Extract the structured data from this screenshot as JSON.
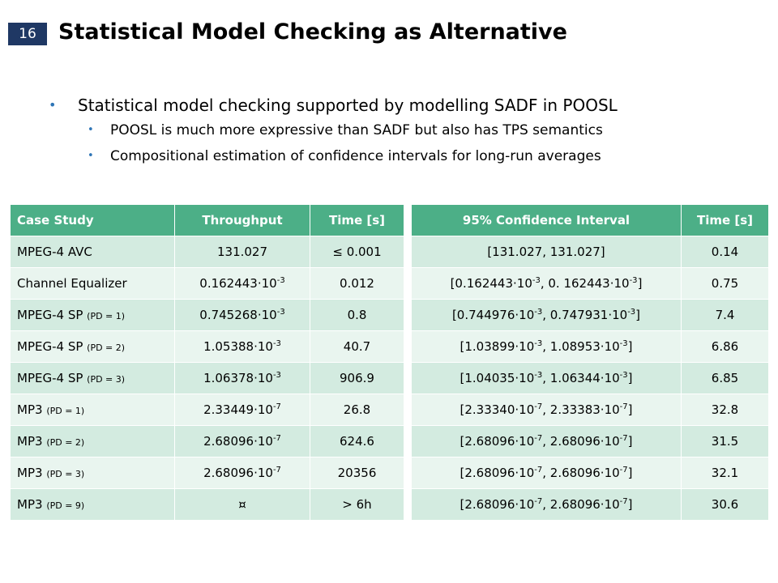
{
  "slide": {
    "number": "16",
    "title": "Statistical Model Checking as Alternative"
  },
  "bullets": {
    "level1": "Statistical model checking supported by modelling SADF in POOSL",
    "level2": [
      "POOSL is much more expressive than SADF but also has TPS semantics",
      "Compositional estimation of confidence intervals for long-run averages"
    ],
    "marker": "•"
  },
  "left_table": {
    "headers": [
      "Case Study",
      "Throughput",
      "Time [s]"
    ],
    "rows": [
      {
        "case": "MPEG-4 AVC",
        "pd": "",
        "mant": "131.027",
        "exp": "",
        "time": "≤ 0.001"
      },
      {
        "case": "Channel Equalizer",
        "pd": "",
        "mant": "0.162443·10",
        "exp": "-3",
        "time": "0.012"
      },
      {
        "case": "MPEG-4 SP ",
        "pd": "(PD = 1)",
        "mant": "0.745268·10",
        "exp": "-3",
        "time": "0.8"
      },
      {
        "case": "MPEG-4 SP ",
        "pd": "(PD = 2)",
        "mant": "1.05388·10",
        "exp": "-3",
        "time": "40.7"
      },
      {
        "case": "MPEG-4 SP ",
        "pd": "(PD = 3)",
        "mant": "1.06378·10",
        "exp": "-3",
        "time": "906.9"
      },
      {
        "case": "MP3 ",
        "pd": "(PD = 1)",
        "mant": "2.33449·10",
        "exp": "-7",
        "time": "26.8"
      },
      {
        "case": "MP3 ",
        "pd": "(PD = 2)",
        "mant": "2.68096·10",
        "exp": "-7",
        "time": "624.6"
      },
      {
        "case": "MP3 ",
        "pd": "(PD = 3)",
        "mant": "2.68096·10",
        "exp": "-7",
        "time": "20356"
      },
      {
        "case": "MP3 ",
        "pd": "(PD = 9)",
        "mant": "¤",
        "exp": "",
        "time": "> 6h"
      }
    ]
  },
  "right_table": {
    "headers": [
      "95% Confidence Interval",
      "Time [s]"
    ],
    "rows": [
      {
        "lo": "[131.027",
        "lo_exp": "",
        "hi": ", 131.027",
        "hi_exp": "",
        "close": "]",
        "time": "0.14"
      },
      {
        "lo": "[0.162443·10",
        "lo_exp": "-3",
        "hi": ", 0. 162443·10",
        "hi_exp": "-3",
        "close": "]",
        "time": "0.75"
      },
      {
        "lo": "[0.744976·10",
        "lo_exp": "-3",
        "hi": ", 0.747931·10",
        "hi_exp": "-3",
        "close": "]",
        "time": "7.4"
      },
      {
        "lo": "[1.03899·10",
        "lo_exp": "-3",
        "hi": ", 1.08953·10",
        "hi_exp": "-3",
        "close": "]",
        "time": "6.86"
      },
      {
        "lo": "[1.04035·10",
        "lo_exp": "-3",
        "hi": ", 1.06344·10",
        "hi_exp": "-3",
        "close": "]",
        "time": "6.85"
      },
      {
        "lo": "[2.33340·10",
        "lo_exp": "-7",
        "hi": ", 2.33383·10",
        "hi_exp": "-7",
        "close": "]",
        "time": "32.8"
      },
      {
        "lo": "[2.68096·10",
        "lo_exp": "-7",
        "hi": ", 2.68096·10",
        "hi_exp": "-7",
        "close": "]",
        "time": "31.5"
      },
      {
        "lo": "[2.68096·10",
        "lo_exp": "-7",
        "hi": ", 2.68096·10",
        "hi_exp": "-7",
        "close": "]",
        "time": "32.1"
      },
      {
        "lo": "[2.68096·10",
        "lo_exp": "-7",
        "hi": ", 2.68096·10",
        "hi_exp": "-7",
        "close": "]",
        "time": "30.6"
      }
    ]
  },
  "colors": {
    "header_bg": "#4caf87",
    "row_dark": "#d3ebe0",
    "row_light": "#e9f5ef",
    "bullet": "#2e75b6",
    "slide_number_bg": "#1f3864"
  }
}
